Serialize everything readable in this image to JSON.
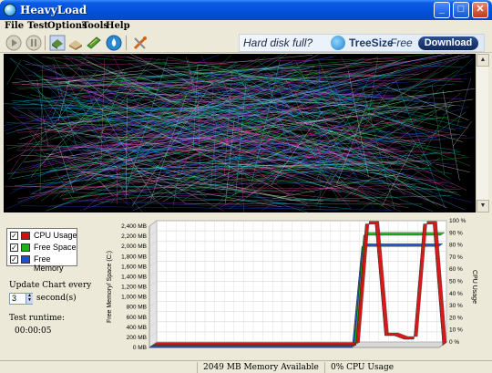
{
  "window": {
    "title": "HeavyLoad"
  },
  "window_buttons": {
    "minimize": "_",
    "maximize": "□",
    "close": "✕"
  },
  "menu": {
    "items": [
      "File",
      "Test",
      "Options",
      "Tools",
      "Help"
    ]
  },
  "toolbar": {
    "icons": [
      "play-icon",
      "pause-icon",
      "cpu-load-icon",
      "disk-load-icon",
      "memory-load-icon",
      "water-drop-icon",
      "settings-tools-icon"
    ]
  },
  "ad": {
    "headline": "Hard disk full?",
    "brand": "TreeSize",
    "brand_sub": "Free",
    "download_label": "Download"
  },
  "legend": {
    "items": [
      {
        "label": "CPU Usage",
        "color": "#D01010",
        "checked": "✓"
      },
      {
        "label": "Free Space",
        "color": "#20B020",
        "checked": "✓"
      },
      {
        "label": "Free Memory",
        "color": "#2050C8",
        "checked": "✓"
      }
    ]
  },
  "controls": {
    "update_label": "Update Chart every",
    "update_value": "3",
    "seconds_label": "second(s)",
    "runtime_label": "Test runtime:",
    "runtime_value": "00:00:05"
  },
  "chart_data": {
    "type": "line",
    "ylabel_left": "Free Memory/ Space (C:)",
    "ylabel_right": "CPU Usage",
    "left_ticks": [
      "0 MB",
      "200 MB",
      "400 MB",
      "600 MB",
      "800 MB",
      "1,000 MB",
      "1,200 MB",
      "1,400 MB",
      "1,600 MB",
      "1,800 MB",
      "2,000 MB",
      "2,200 MB",
      "2,400 MB"
    ],
    "right_ticks": [
      "0 %",
      "10 %",
      "20 %",
      "30 %",
      "40 %",
      "50 %",
      "60 %",
      "70 %",
      "80 %",
      "90 %",
      "100 %"
    ],
    "ylim_left": [
      0,
      2400
    ],
    "ylim_right": [
      0,
      100
    ],
    "x": [
      0,
      1,
      2,
      3,
      4,
      5,
      6,
      7,
      8,
      9,
      10,
      11,
      12,
      13,
      14,
      15,
      16,
      17,
      18,
      19,
      20,
      21,
      22,
      23,
      24,
      25,
      26,
      27,
      28,
      29,
      30
    ],
    "series": [
      {
        "name": "CPU Usage",
        "color": "#D01010",
        "axis": "right",
        "values": [
          0,
          0,
          0,
          0,
          0,
          0,
          0,
          0,
          0,
          0,
          0,
          0,
          0,
          0,
          0,
          0,
          0,
          0,
          0,
          0,
          0,
          0,
          100,
          100,
          8,
          8,
          5,
          5,
          100,
          100,
          0
        ]
      },
      {
        "name": "Free Space",
        "color": "#20B020",
        "axis": "left",
        "values": [
          0,
          0,
          0,
          0,
          0,
          0,
          0,
          0,
          0,
          0,
          0,
          0,
          0,
          0,
          0,
          0,
          0,
          0,
          0,
          0,
          0,
          0,
          2200,
          2200,
          2200,
          2200,
          2200,
          2200,
          2200,
          2200,
          2200
        ]
      },
      {
        "name": "Free Memory",
        "color": "#2050C8",
        "axis": "left",
        "values": [
          0,
          0,
          0,
          0,
          0,
          0,
          0,
          0,
          0,
          0,
          0,
          0,
          0,
          0,
          0,
          0,
          0,
          0,
          0,
          0,
          0,
          0,
          2000,
          2000,
          2000,
          2000,
          2000,
          2000,
          2000,
          2000,
          2000
        ]
      }
    ],
    "grid": true,
    "legend": "left"
  },
  "status": {
    "memory": "2049 MB Memory Available",
    "cpu": "0% CPU Usage"
  }
}
